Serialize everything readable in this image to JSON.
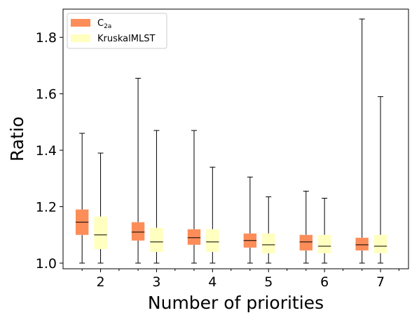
{
  "chart_data": {
    "type": "box",
    "xlabel": "Number of priorities",
    "ylabel": "Ratio",
    "categories": [
      "2",
      "3",
      "4",
      "5",
      "6",
      "7"
    ],
    "ylim": [
      0.98,
      1.9
    ],
    "yticks": [
      "1.0",
      "1.2",
      "1.4",
      "1.6",
      "1.8"
    ],
    "legend_position": "upper-left",
    "series": [
      {
        "name": "C",
        "name_sub": "2a",
        "color": "#fc8d59",
        "boxes": [
          {
            "min": 1.0,
            "q1": 1.1,
            "median": 1.145,
            "q3": 1.19,
            "max": 1.46
          },
          {
            "min": 1.0,
            "q1": 1.08,
            "median": 1.11,
            "q3": 1.145,
            "max": 1.655
          },
          {
            "min": 1.0,
            "q1": 1.065,
            "median": 1.09,
            "q3": 1.12,
            "max": 1.47
          },
          {
            "min": 1.0,
            "q1": 1.055,
            "median": 1.08,
            "q3": 1.105,
            "max": 1.305
          },
          {
            "min": 1.0,
            "q1": 1.045,
            "median": 1.075,
            "q3": 1.1,
            "max": 1.255
          },
          {
            "min": 1.0,
            "q1": 1.045,
            "median": 1.065,
            "q3": 1.09,
            "max": 1.865
          }
        ]
      },
      {
        "name": "KruskalMLST",
        "color": "#ffffbf",
        "boxes": [
          {
            "min": 1.0,
            "q1": 1.05,
            "median": 1.1,
            "q3": 1.165,
            "max": 1.39
          },
          {
            "min": 1.0,
            "q1": 1.04,
            "median": 1.075,
            "q3": 1.125,
            "max": 1.47
          },
          {
            "min": 1.0,
            "q1": 1.04,
            "median": 1.075,
            "q3": 1.12,
            "max": 1.34
          },
          {
            "min": 1.0,
            "q1": 1.035,
            "median": 1.065,
            "q3": 1.105,
            "max": 1.235
          },
          {
            "min": 1.0,
            "q1": 1.035,
            "median": 1.06,
            "q3": 1.1,
            "max": 1.23
          },
          {
            "min": 1.0,
            "q1": 1.035,
            "median": 1.06,
            "q3": 1.1,
            "max": 1.59
          }
        ]
      }
    ]
  }
}
